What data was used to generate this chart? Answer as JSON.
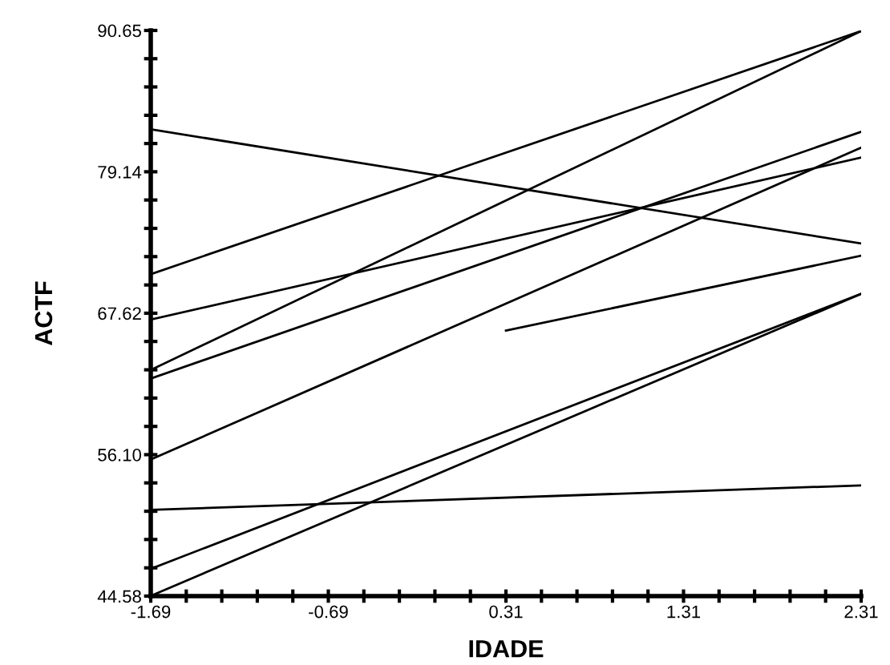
{
  "chart_data": {
    "type": "line",
    "xlabel": "IDADE",
    "ylabel": "ACTF",
    "xlim": [
      -1.69,
      2.31
    ],
    "ylim": [
      44.58,
      90.65
    ],
    "xticks": [
      -1.69,
      {
        "value": -1.49,
        "label": null
      },
      {
        "value": -1.29,
        "label": null
      },
      {
        "value": -1.09,
        "label": null
      },
      {
        "value": -0.89,
        "label": null
      },
      -0.69,
      {
        "value": -0.49,
        "label": null
      },
      {
        "value": -0.29,
        "label": null
      },
      {
        "value": -0.09,
        "label": null
      },
      {
        "value": 0.11,
        "label": null
      },
      0.31,
      {
        "value": 0.51,
        "label": null
      },
      {
        "value": 0.71,
        "label": null
      },
      {
        "value": 0.91,
        "label": null
      },
      {
        "value": 1.11,
        "label": null
      },
      1.31,
      {
        "value": 1.51,
        "label": null
      },
      {
        "value": 1.71,
        "label": null
      },
      {
        "value": 1.91,
        "label": null
      },
      {
        "value": 2.11,
        "label": null
      },
      2.31
    ],
    "yticks": [
      44.58,
      {
        "value": 46.88,
        "label": null
      },
      {
        "value": 49.19,
        "label": null
      },
      {
        "value": 51.49,
        "label": null
      },
      {
        "value": 53.8,
        "label": null
      },
      {
        "value": 56.1,
        "label": "56.10"
      },
      {
        "value": 58.4,
        "label": null
      },
      {
        "value": 60.71,
        "label": null
      },
      {
        "value": 63.01,
        "label": null
      },
      {
        "value": 65.32,
        "label": null
      },
      67.62,
      {
        "value": 69.92,
        "label": null
      },
      {
        "value": 72.23,
        "label": null
      },
      {
        "value": 74.53,
        "label": null
      },
      {
        "value": 76.84,
        "label": null
      },
      79.14,
      {
        "value": 81.44,
        "label": null
      },
      {
        "value": 83.74,
        "label": null
      },
      {
        "value": 86.05,
        "label": null
      },
      {
        "value": 88.35,
        "label": null
      },
      90.65
    ],
    "grid": false,
    "line_style": "solid",
    "series": [
      {
        "color": "#000000",
        "x": [
          -1.69,
          2.31
        ],
        "values": [
          82.6,
          73.3
        ]
      },
      {
        "color": "#000000",
        "x": [
          -1.69,
          2.31
        ],
        "values": [
          70.8,
          90.6
        ]
      },
      {
        "color": "#000000",
        "x": [
          -1.69,
          2.31
        ],
        "values": [
          67.1,
          80.3
        ]
      },
      {
        "color": "#000000",
        "x": [
          -1.69,
          2.31
        ],
        "values": [
          63.0,
          90.6
        ]
      },
      {
        "color": "#000000",
        "x": [
          -1.69,
          2.31
        ],
        "values": [
          62.3,
          82.4
        ]
      },
      {
        "color": "#000000",
        "x": [
          -1.69,
          2.31
        ],
        "values": [
          55.7,
          81.1
        ]
      },
      {
        "color": "#000000",
        "x": [
          -1.69,
          2.31
        ],
        "values": [
          51.6,
          53.6
        ]
      },
      {
        "color": "#000000",
        "x": [
          -1.69,
          2.31
        ],
        "values": [
          46.8,
          69.2
        ]
      },
      {
        "color": "#000000",
        "x": [
          -1.69,
          2.31
        ],
        "values": [
          44.6,
          69.2
        ]
      },
      {
        "color": "#000000",
        "x": [
          0.31,
          2.31
        ],
        "values": [
          66.2,
          72.3
        ]
      }
    ]
  }
}
